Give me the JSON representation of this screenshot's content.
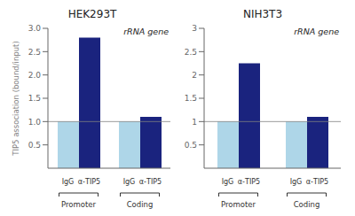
{
  "chart_data": [
    {
      "type": "bar",
      "title": "HEK293T",
      "y_label": "TIP5 association (bound/input)",
      "annotations": [
        "rRNA gene"
      ],
      "categories": [
        "Promoter",
        "Coding"
      ],
      "series": [
        {
          "name": "IgG",
          "color": "#aed6e8",
          "values": [
            1.0,
            1.0
          ]
        },
        {
          "name": "α-TIP5",
          "color": "#1a237e",
          "values": [
            2.8,
            1.1
          ]
        }
      ],
      "hline": 1.0,
      "ylim": [
        0,
        3
      ],
      "yticks": [
        0.5,
        {
          "value": 1.0,
          "label": "1.0"
        },
        1.5,
        {
          "value": 2.0,
          "label": "2.0"
        },
        2.5,
        {
          "value": 3.0,
          "label": "3.0"
        }
      ]
    },
    {
      "type": "bar",
      "title": "NIH3T3",
      "annotations": [
        "rRNA gene"
      ],
      "categories": [
        "Promoter",
        "Coding"
      ],
      "series": [
        {
          "name": "IgG",
          "color": "#aed6e8",
          "values": [
            1.0,
            1.0
          ]
        },
        {
          "name": "α-TIP5",
          "color": "#1a237e",
          "values": [
            2.25,
            1.1
          ]
        }
      ],
      "hline": 1.0,
      "ylim": [
        0,
        3
      ],
      "yticks": [
        0.5,
        1,
        1.5,
        2,
        2.5,
        3
      ]
    }
  ]
}
